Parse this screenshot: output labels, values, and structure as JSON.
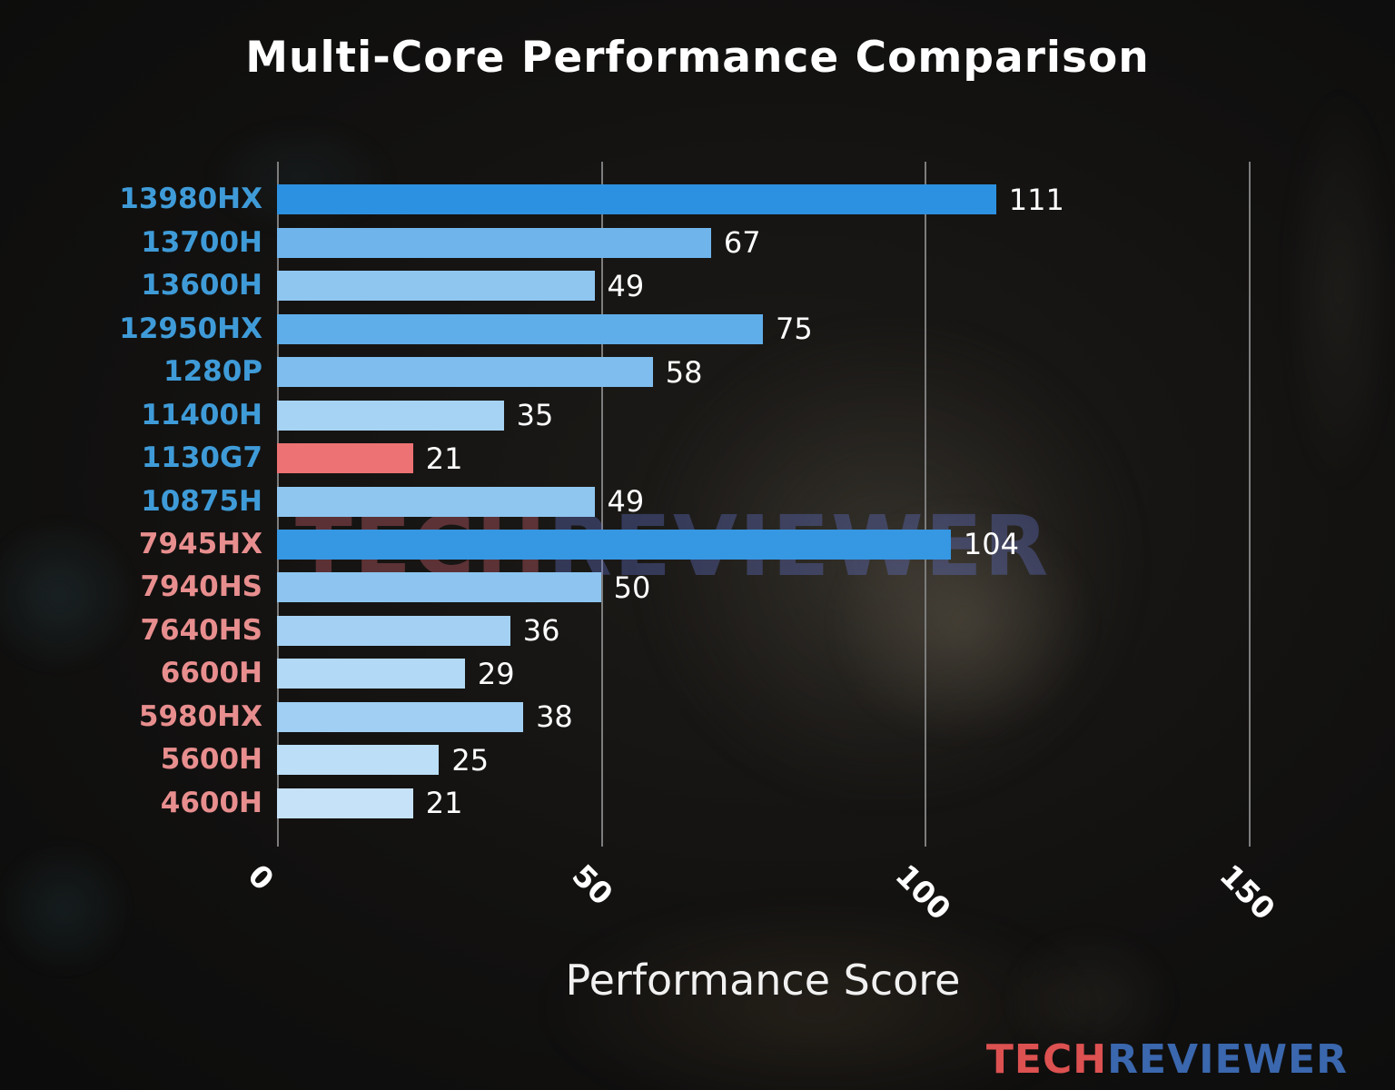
{
  "chart_data": {
    "type": "bar",
    "orientation": "horizontal",
    "title": "Multi-Core Performance Comparison",
    "xlabel": "Performance Score",
    "xlim": [
      0,
      150
    ],
    "xticks": [
      0,
      50,
      100,
      150
    ],
    "grid": true,
    "grid_color": "#7d7d7d",
    "value_label_color": "#ffffff",
    "tick_label_color": "#ffffff",
    "categories": [
      "13980HX",
      "13700H",
      "13600H",
      "12950HX",
      "1280P",
      "11400H",
      "1130G7",
      "10875H",
      "7945HX",
      "7940HS",
      "7640HS",
      "6600H",
      "5980HX",
      "5600H",
      "4600H"
    ],
    "values": [
      111,
      67,
      49,
      75,
      58,
      35,
      21,
      49,
      104,
      50,
      36,
      29,
      38,
      25,
      21
    ],
    "bars": [
      {
        "label": "13980HX",
        "value": 111,
        "bar_color": "#2d91e1",
        "label_color": "#3f9bd8",
        "group": "intel"
      },
      {
        "label": "13700H",
        "value": 67,
        "bar_color": "#6fb5ec",
        "label_color": "#3f9bd8",
        "group": "intel"
      },
      {
        "label": "13600H",
        "value": 49,
        "bar_color": "#8fc6f0",
        "label_color": "#3f9bd8",
        "group": "intel"
      },
      {
        "label": "12950HX",
        "value": 75,
        "bar_color": "#5fade9",
        "label_color": "#3f9bd8",
        "group": "intel"
      },
      {
        "label": "1280P",
        "value": 58,
        "bar_color": "#7fbdee",
        "label_color": "#3f9bd8",
        "group": "intel"
      },
      {
        "label": "11400H",
        "value": 35,
        "bar_color": "#a6d2f4",
        "label_color": "#3f9bd8",
        "group": "intel"
      },
      {
        "label": "1130G7",
        "value": 21,
        "bar_color": "#ed7273",
        "label_color": "#3f9bd8",
        "group": "intel"
      },
      {
        "label": "10875H",
        "value": 49,
        "bar_color": "#8fc6f0",
        "label_color": "#3f9bd8",
        "group": "intel"
      },
      {
        "label": "7945HX",
        "value": 104,
        "bar_color": "#3697e3",
        "label_color": "#e88e8e",
        "group": "amd"
      },
      {
        "label": "7940HS",
        "value": 50,
        "bar_color": "#8dc5f0",
        "label_color": "#e88e8e",
        "group": "amd"
      },
      {
        "label": "7640HS",
        "value": 36,
        "bar_color": "#a4d1f3",
        "label_color": "#e88e8e",
        "group": "amd"
      },
      {
        "label": "6600H",
        "value": 29,
        "bar_color": "#b2d9f5",
        "label_color": "#e88e8e",
        "group": "amd"
      },
      {
        "label": "5980HX",
        "value": 38,
        "bar_color": "#a0cff3",
        "label_color": "#e88e8e",
        "group": "amd"
      },
      {
        "label": "5600H",
        "value": 25,
        "bar_color": "#bcdef7",
        "label_color": "#e88e8e",
        "group": "amd"
      },
      {
        "label": "4600H",
        "value": 21,
        "bar_color": "#c5e2f8",
        "label_color": "#e88e8e",
        "group": "amd"
      }
    ]
  },
  "watermark": {
    "part1": "TECH",
    "part2": "REVIEWER"
  },
  "logo": {
    "part1": "TECH",
    "part2": "REVIEWER"
  }
}
